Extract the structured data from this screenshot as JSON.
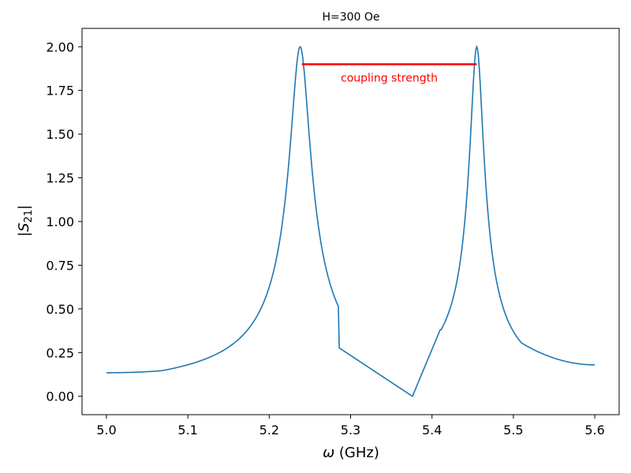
{
  "chart_data": {
    "type": "line",
    "title": "H=300 Oe",
    "xlabel_symbol": "ω",
    "xlabel_unit": " (GHz)",
    "ylabel_base": "|S",
    "ylabel_sub": "21",
    "ylabel_end": "|",
    "xlim": [
      4.97,
      5.63
    ],
    "ylim": [
      -0.105,
      2.105
    ],
    "xticks": [
      "5.0",
      "5.1",
      "5.2",
      "5.3",
      "5.4",
      "5.5",
      "5.6"
    ],
    "yticks": [
      "0.00",
      "0.25",
      "0.50",
      "0.75",
      "1.00",
      "1.25",
      "1.50",
      "1.75",
      "2.00"
    ],
    "grid": false,
    "series": [
      {
        "color": "#1f77b4",
        "resonances": [
          5.238,
          5.455
        ],
        "peak_height": 2.0,
        "minimum_at": 5.376,
        "minimum_value": 0.0,
        "points": [
          [
            5.0,
            0.14
          ],
          [
            5.05,
            0.165
          ],
          [
            5.1,
            0.2
          ],
          [
            5.15,
            0.265
          ],
          [
            5.18,
            0.36
          ],
          [
            5.2,
            0.52
          ],
          [
            5.22,
            0.95
          ],
          [
            5.238,
            2.0
          ],
          [
            5.26,
            0.8
          ],
          [
            5.3,
            0.24
          ],
          [
            5.376,
            0.0
          ],
          [
            5.42,
            0.45
          ],
          [
            5.455,
            2.0
          ],
          [
            5.5,
            0.38
          ],
          [
            5.55,
            0.24
          ],
          [
            5.6,
            0.18
          ]
        ]
      }
    ],
    "annotation": {
      "text": "coupling strength",
      "color": "#ff0000",
      "x_start": 5.24,
      "x_end": 5.455,
      "y": 1.9
    }
  }
}
